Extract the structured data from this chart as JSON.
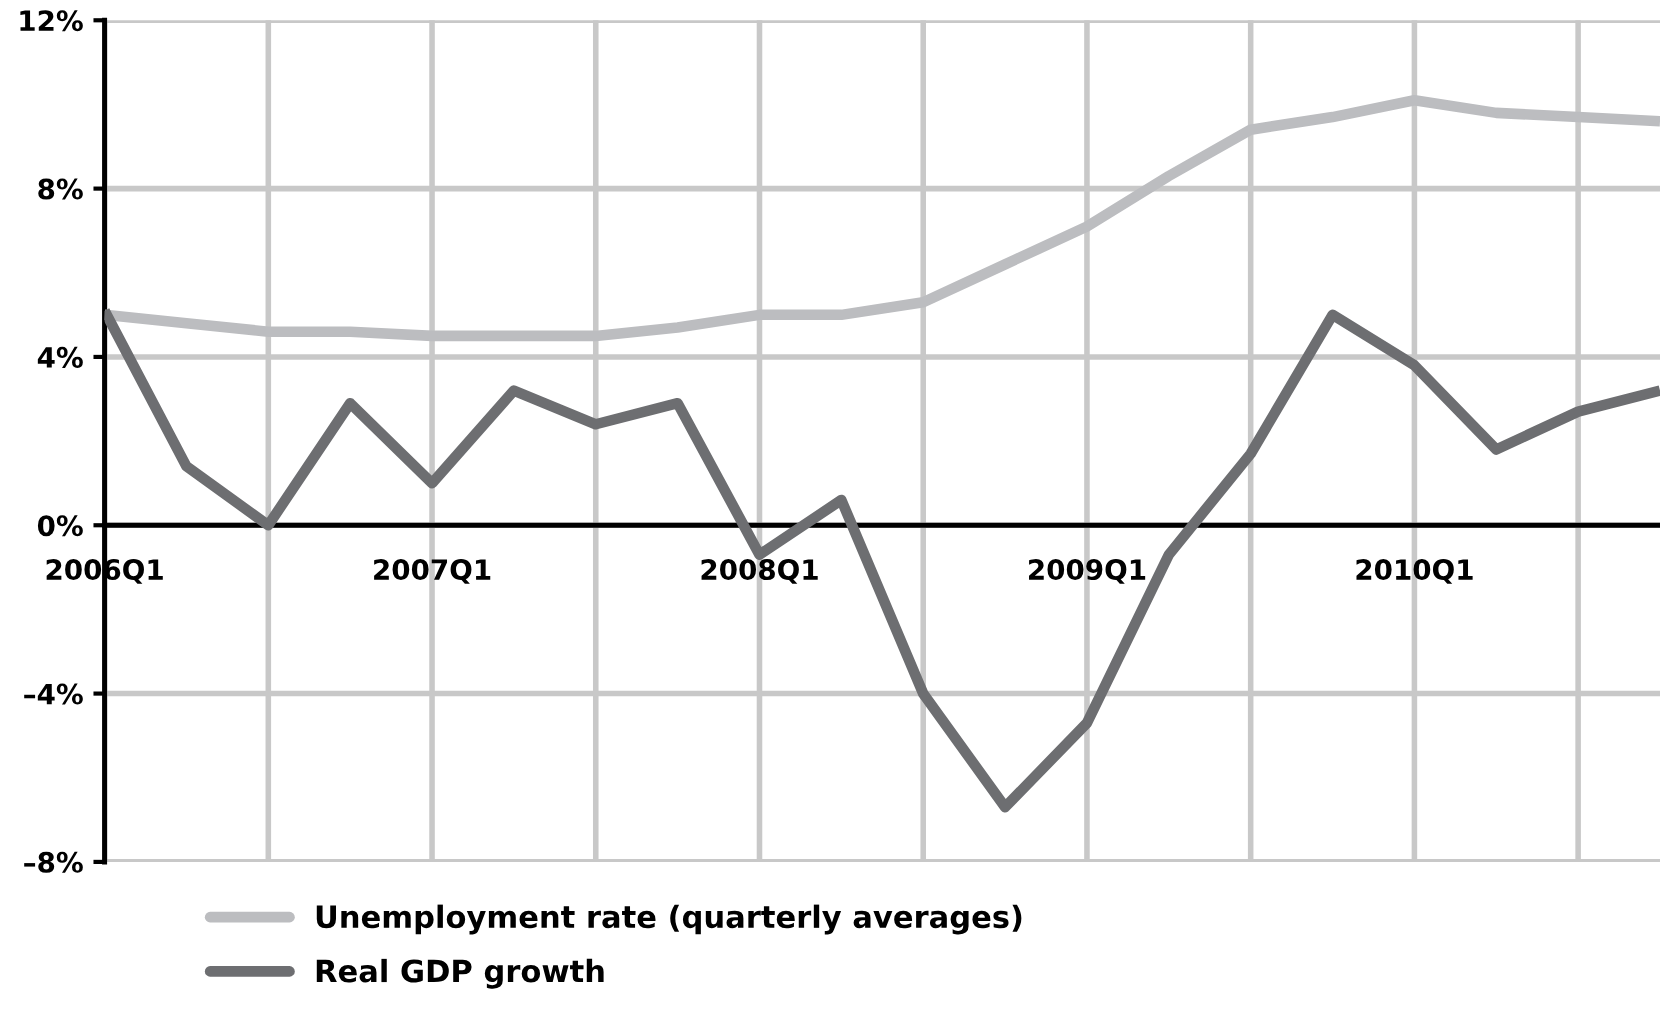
{
  "chart_data": {
    "type": "line",
    "categories": [
      "2006Q1",
      null,
      null,
      null,
      "2007Q1",
      null,
      null,
      null,
      "2008Q1",
      null,
      null,
      null,
      "2009Q1",
      null,
      null,
      null,
      "2010Q1",
      null,
      null,
      null
    ],
    "series": [
      {
        "name": "Unemployment rate (quarterly averages)",
        "color": "#bcbdc0",
        "values": [
          5.0,
          4.8,
          4.6,
          4.6,
          4.5,
          4.5,
          4.5,
          4.7,
          5.0,
          5.0,
          5.3,
          6.2,
          7.1,
          8.3,
          9.4,
          9.7,
          10.1,
          9.8,
          9.7,
          9.6
        ]
      },
      {
        "name": "Real GDP growth",
        "color": "#6d6e71",
        "values": [
          5.1,
          1.4,
          0.0,
          2.9,
          1.0,
          3.2,
          2.4,
          2.9,
          -0.7,
          0.6,
          -4.0,
          -6.7,
          -4.7,
          -0.7,
          1.7,
          5.0,
          3.8,
          1.8,
          2.7,
          3.2
        ]
      }
    ],
    "ylim": [
      -8,
      12
    ],
    "yticks": [
      {
        "value": -8,
        "label": "–8%"
      },
      {
        "value": -4,
        "label": "–4%"
      },
      {
        "value": 0,
        "label": "0%"
      },
      {
        "value": 4,
        "label": "4%"
      },
      {
        "value": 8,
        "label": "8%"
      },
      {
        "value": 12,
        "label": "12%"
      }
    ],
    "grid": true,
    "legend": "bottom",
    "marker": "none",
    "line_style": "solid"
  }
}
